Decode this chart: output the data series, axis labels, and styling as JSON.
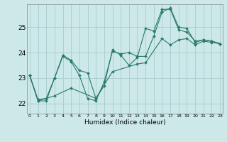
{
  "title": "",
  "xlabel": "Humidex (Indice chaleur)",
  "bg_color": "#cce8e8",
  "grid_color": "#aacccc",
  "line_color": "#2a7a6a",
  "x_ticks": [
    0,
    1,
    2,
    3,
    4,
    5,
    6,
    7,
    8,
    9,
    10,
    11,
    12,
    13,
    14,
    15,
    16,
    17,
    18,
    19,
    20,
    21,
    22,
    23
  ],
  "y_ticks": [
    22,
    23,
    24,
    25
  ],
  "xlim": [
    -0.3,
    23.3
  ],
  "ylim": [
    21.6,
    25.9
  ],
  "series1_x": [
    0,
    1,
    2,
    3,
    4,
    5,
    6,
    7,
    8,
    9,
    10,
    11,
    12,
    13,
    14,
    15,
    16,
    17,
    18,
    19,
    20,
    21,
    22,
    23
  ],
  "series1_y": [
    23.1,
    22.1,
    22.1,
    23.0,
    23.9,
    23.7,
    23.3,
    23.2,
    22.2,
    22.7,
    24.1,
    23.9,
    23.5,
    23.8,
    24.95,
    24.85,
    25.7,
    25.7,
    24.9,
    24.8,
    24.45,
    24.5,
    24.45,
    24.35
  ],
  "series2_x": [
    0,
    1,
    2,
    3,
    4,
    5,
    6,
    7,
    8,
    9,
    10,
    11,
    12,
    13,
    14,
    15,
    16,
    17,
    18,
    19,
    20,
    21,
    22,
    23
  ],
  "series2_y": [
    23.1,
    22.1,
    22.2,
    23.0,
    23.85,
    23.65,
    23.1,
    22.2,
    22.1,
    22.85,
    24.05,
    23.95,
    24.0,
    23.85,
    23.85,
    24.65,
    25.6,
    25.75,
    25.0,
    24.95,
    24.4,
    24.5,
    24.45,
    24.35
  ],
  "series3_x": [
    0,
    1,
    2,
    3,
    5,
    8,
    10,
    13,
    14,
    16,
    17,
    18,
    19,
    20,
    21,
    22,
    23
  ],
  "series3_y": [
    23.1,
    22.15,
    22.2,
    22.3,
    22.6,
    22.2,
    23.25,
    23.55,
    23.6,
    24.55,
    24.3,
    24.5,
    24.55,
    24.3,
    24.45,
    24.4,
    24.35
  ]
}
